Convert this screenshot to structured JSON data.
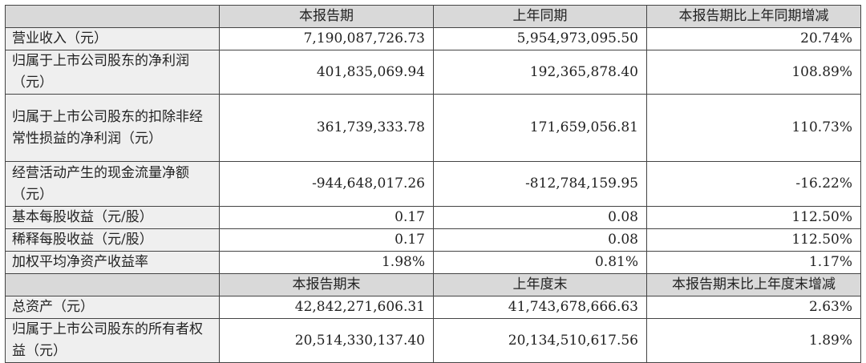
{
  "header1": [
    "",
    "本报告期",
    "上年同期",
    "本报告期比上年同期增减"
  ],
  "rows1": [
    {
      "label": "营业收入（元）",
      "current": "7,190,087,726.73",
      "prior": "5,954,973,095.50",
      "change": "20.74%"
    },
    {
      "label": "归属于上市公司股东的净利润（元）",
      "current": "401,835,069.94",
      "prior": "192,365,878.40",
      "change": "108.89%"
    },
    {
      "label": "归属于上市公司股东的扣除非经常性损益的净利润（元）",
      "current": "361,739,333.78",
      "prior": "171,659,056.81",
      "change": "110.73%"
    },
    {
      "label": "经营活动产生的现金流量净额（元）",
      "current": "-944,648,017.26",
      "prior": "-812,784,159.95",
      "change": "-16.22%"
    },
    {
      "label": "基本每股收益（元/股）",
      "current": "0.17",
      "prior": "0.08",
      "change": "112.50%"
    },
    {
      "label": "稀释每股收益（元/股）",
      "current": "0.17",
      "prior": "0.08",
      "change": "112.50%"
    },
    {
      "label": "加权平均净资产收益率",
      "current": "1.98%",
      "prior": "0.81%",
      "change": "1.17%"
    }
  ],
  "header2": [
    "",
    "本报告期末",
    "上年度末",
    "本报告期末比上年度末增减"
  ],
  "rows2": [
    {
      "label": "总资产（元）",
      "current": "42,842,271,606.31",
      "prior": "41,743,678,666.63",
      "change": "2.63%"
    },
    {
      "label": "归属于上市公司股东的所有者权益（元）",
      "current": "20,514,330,137.40",
      "prior": "20,134,510,617.56",
      "change": "1.89%"
    }
  ]
}
